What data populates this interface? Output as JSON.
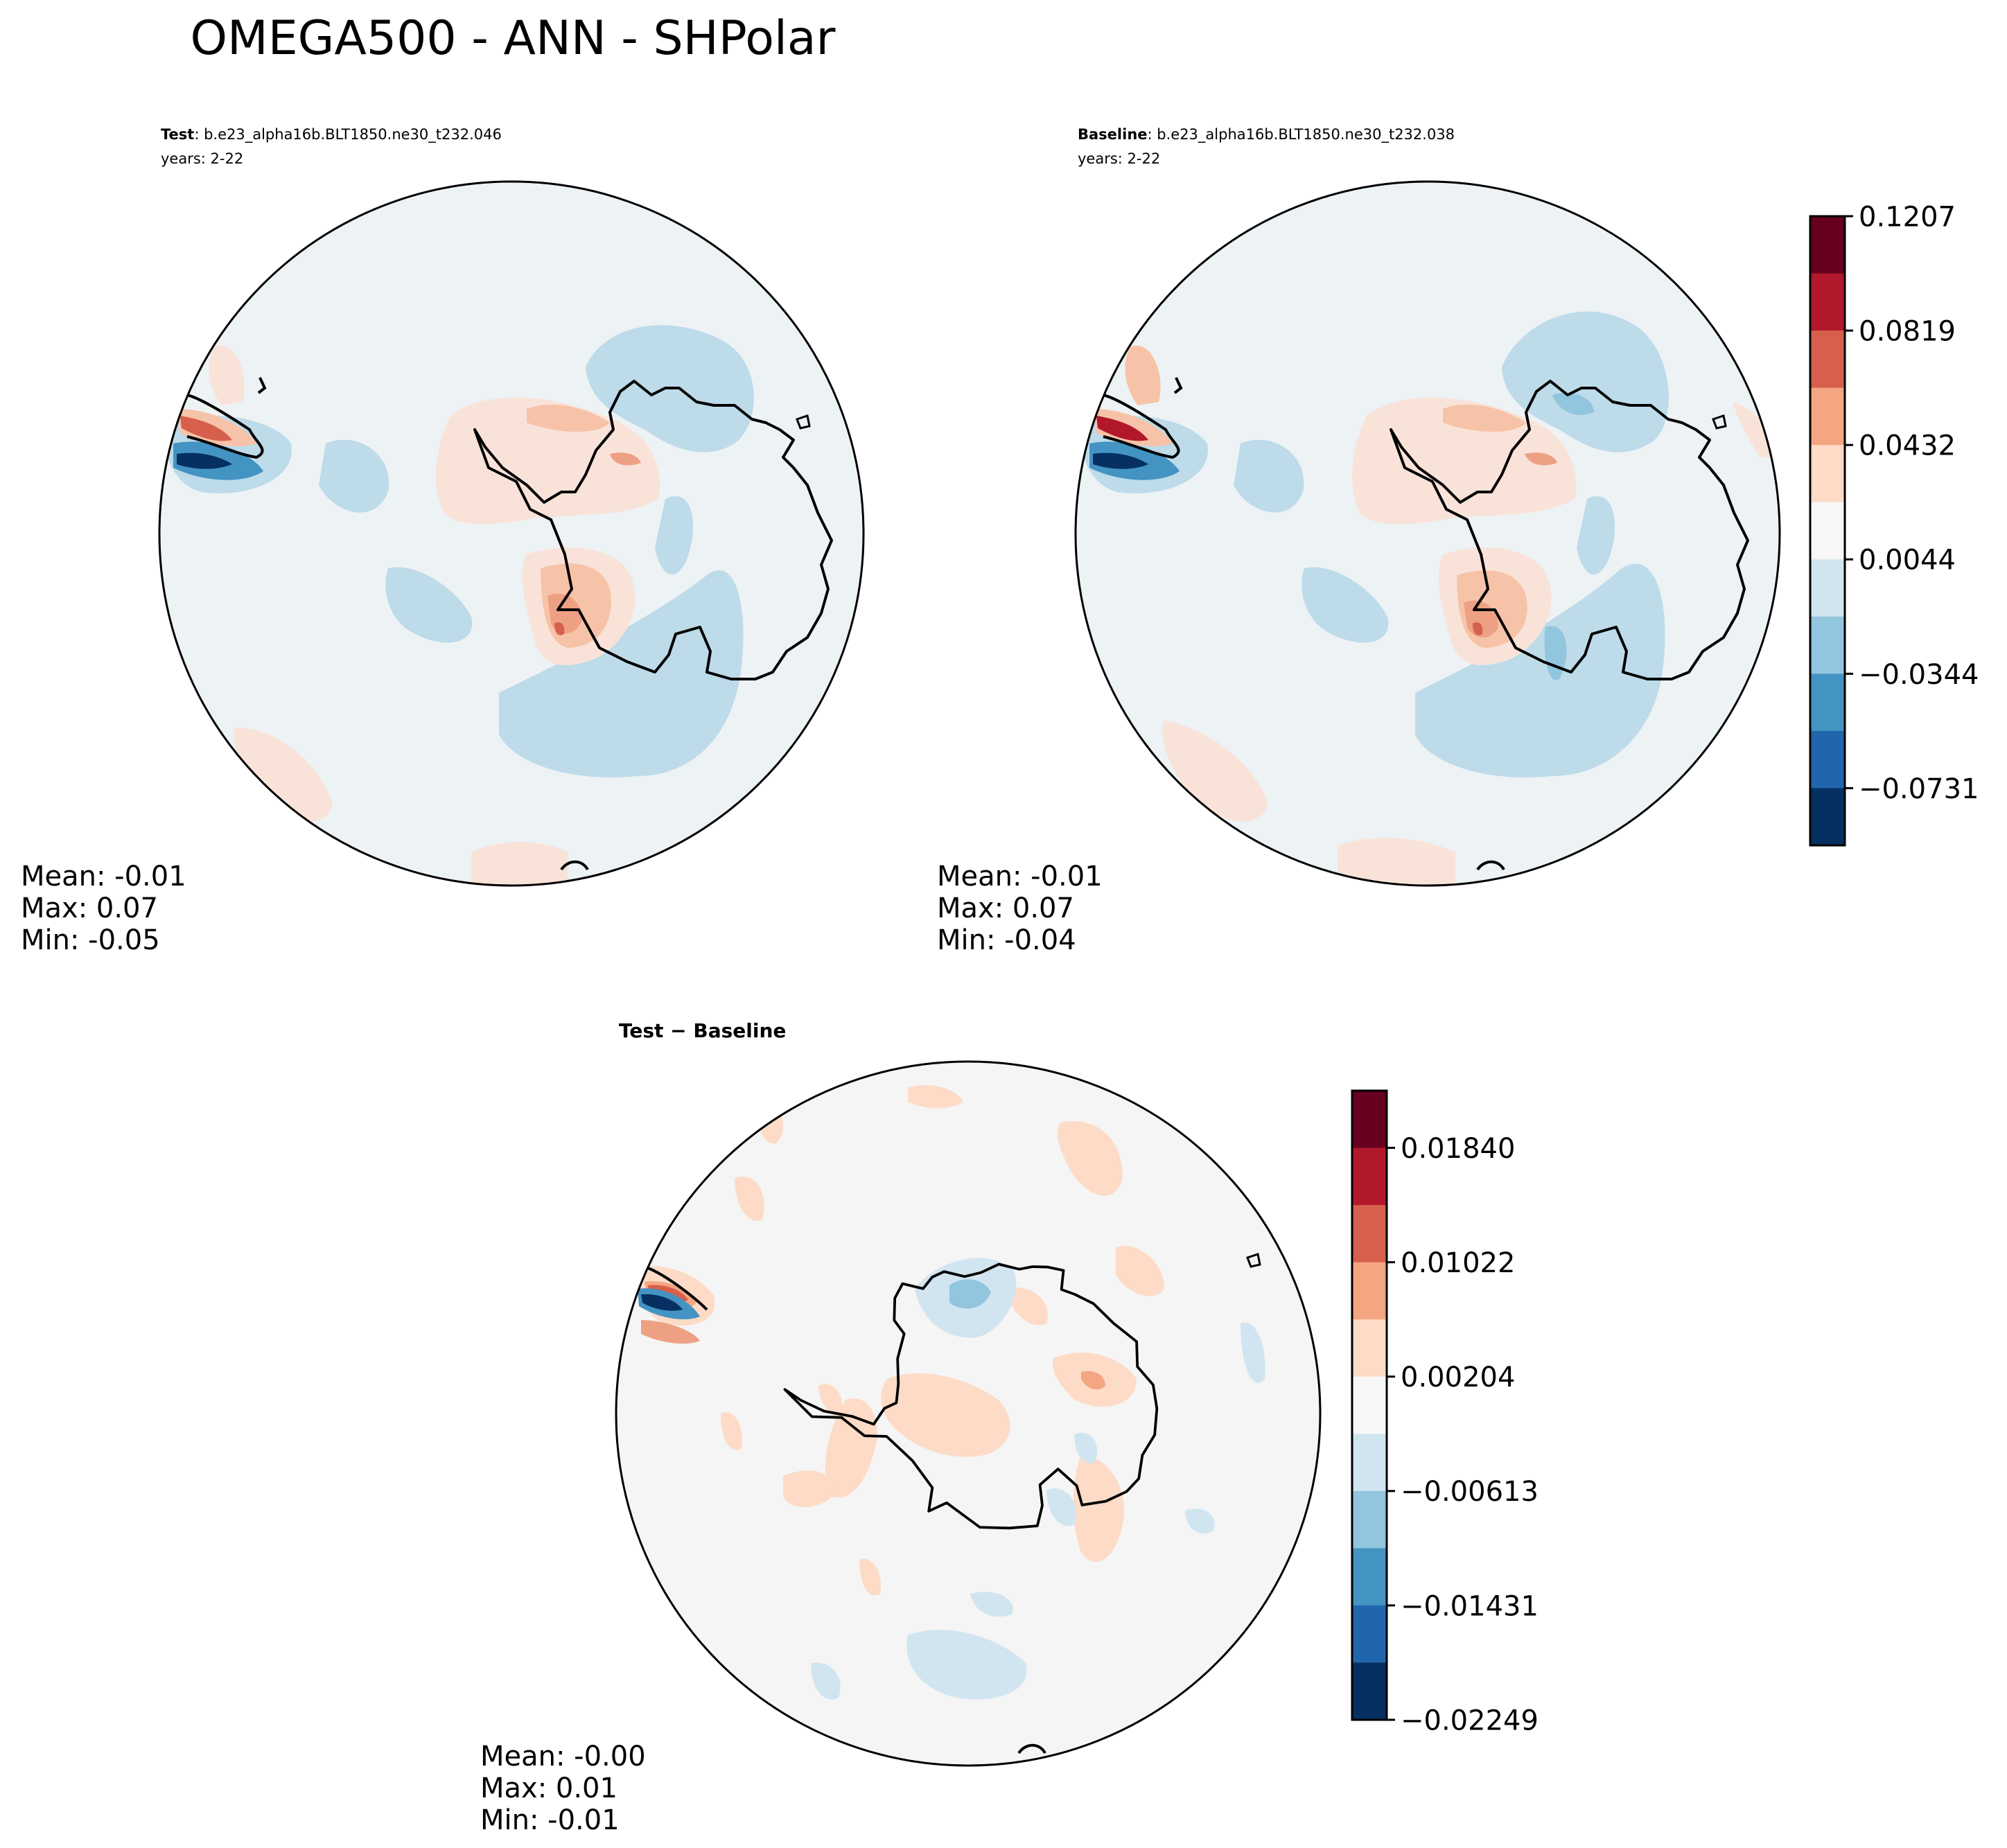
{
  "figure": {
    "title": "OMEGA500 - ANN - SHPolar"
  },
  "chart_data": [
    {
      "type": "heatmap",
      "projection": "south-polar-stereographic",
      "panel": "test",
      "title_bold": "Test",
      "title_rest": ": b.e23_alpha16b.BLT1850.ne30_t232.046",
      "years": "years: 2-22",
      "stats": {
        "mean": "Mean: -0.01",
        "max": "Max:  0.07",
        "min": "Min: -0.05"
      }
    },
    {
      "type": "heatmap",
      "projection": "south-polar-stereographic",
      "panel": "baseline",
      "title_bold": "Baseline",
      "title_rest": ": b.e23_alpha16b.BLT1850.ne30_t232.038",
      "years": "years: 2-22",
      "stats": {
        "mean": "Mean: -0.01",
        "max": "Max:  0.07",
        "min": "Min: -0.04"
      }
    },
    {
      "type": "heatmap",
      "projection": "south-polar-stereographic",
      "panel": "difference",
      "title": "Test − Baseline",
      "stats": {
        "mean": "Mean: -0.00",
        "max": "Max:  0.01",
        "min": "Min: -0.01"
      }
    }
  ],
  "colorbars": {
    "main": {
      "tick_labels": [
        "0.1207",
        "0.0819",
        "0.0432",
        "0.0044",
        "−0.0344",
        "−0.0731"
      ],
      "colors": [
        "#67001f",
        "#b2182b",
        "#d6604d",
        "#f4a582",
        "#fddbc7",
        "#f7f7f7",
        "#d1e5f0",
        "#92c5de",
        "#4393c3",
        "#2166ac",
        "#053061"
      ]
    },
    "diff": {
      "tick_labels": [
        "0.01840",
        "0.01022",
        "0.00204",
        "−0.00613",
        "−0.01431",
        "−0.02249"
      ],
      "colors": [
        "#67001f",
        "#b2182b",
        "#d6604d",
        "#f4a582",
        "#fddbc7",
        "#f7f7f7",
        "#d1e5f0",
        "#92c5de",
        "#4393c3",
        "#2166ac",
        "#053061"
      ]
    }
  },
  "map_colors": {
    "main_background": "#edf2f5",
    "diff_background": "#f5f5f5",
    "light_blue": "#bddbe9",
    "mid_blue": "#92c5de",
    "blue": "#4393c3",
    "dark_blue": "#053061",
    "light_red": "#f9e3d9",
    "mid_red": "#f7c3a8",
    "red": "#eea084",
    "dark_red": "#d6604d"
  }
}
